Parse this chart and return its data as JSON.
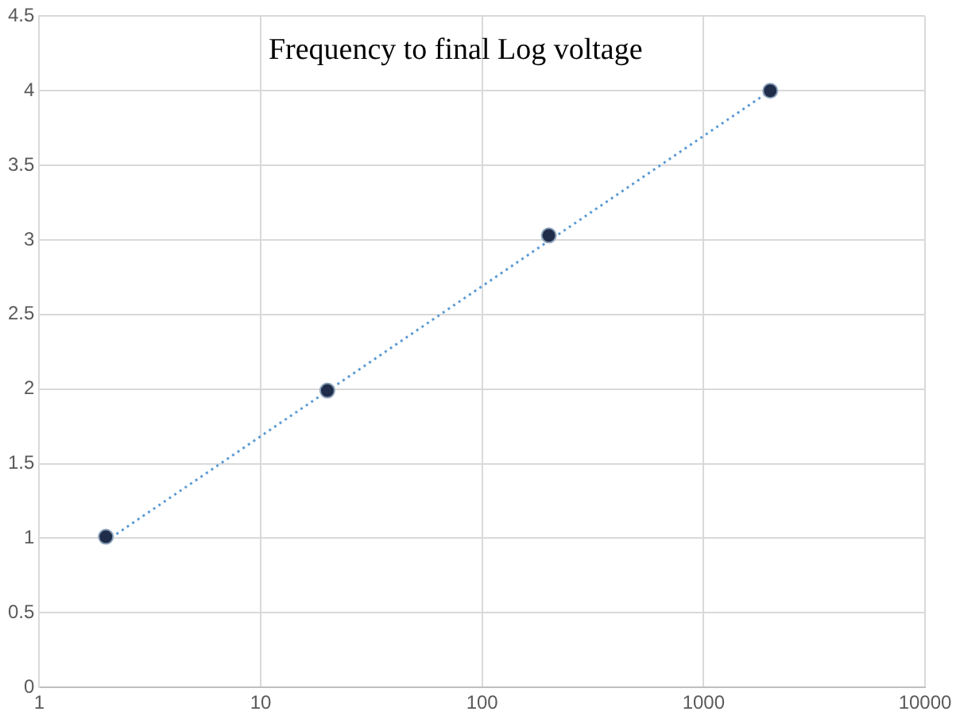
{
  "chart_data": {
    "type": "scatter",
    "title": "Frequency to final Log voltage",
    "log": "x",
    "xlim": [
      1,
      10000
    ],
    "xticks": [
      1,
      10,
      100,
      1000,
      10000
    ],
    "ylim": [
      0,
      4.5
    ],
    "yticks": [
      0,
      0.5,
      1,
      1.5,
      2,
      2.5,
      3,
      3.5,
      4,
      4.5
    ],
    "grid": true,
    "legend": false,
    "marker": "circle",
    "series": [
      {
        "color": "#1f2d4a",
        "x": [
          2,
          20,
          200,
          2000
        ],
        "values": [
          1.01,
          1.99,
          3.03,
          4.0
        ]
      },
      {
        "type": "line",
        "color": "#5b9bd5",
        "line_style": "dotted",
        "marker": "none",
        "x": [
          2,
          2000
        ],
        "values": [
          0.98,
          4.0
        ]
      }
    ]
  }
}
